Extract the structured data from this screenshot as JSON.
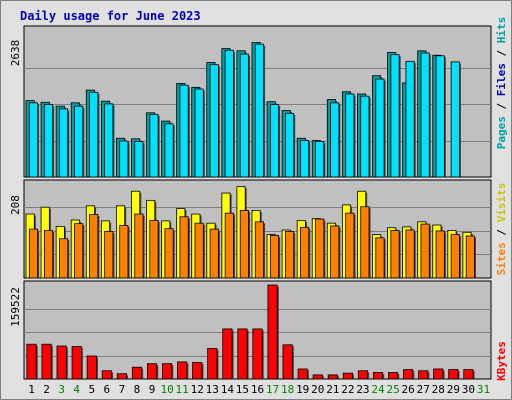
{
  "chart_data": {
    "type": "bar",
    "title": "Daily usage for June 2023",
    "days": [
      "1",
      "2",
      "3",
      "4",
      "5",
      "6",
      "7",
      "8",
      "9",
      "10",
      "11",
      "12",
      "13",
      "14",
      "15",
      "16",
      "17",
      "18",
      "19",
      "20",
      "21",
      "22",
      "23",
      "24",
      "25",
      "26",
      "27",
      "28",
      "29",
      "30",
      "31"
    ],
    "weekend_days": [
      "3",
      "4",
      "10",
      "11",
      "17",
      "18",
      "24",
      "25",
      "31"
    ],
    "panels": [
      {
        "name": "hits-files-pages",
        "max_label": "2638",
        "max": 2638,
        "series": [
          {
            "name": "Pages",
            "color": "#00a0a0",
            "values": [
              1380,
              1350,
              1280,
              1340,
              1570,
              1370,
              700,
              690,
              1160,
              1010,
              1690,
              1620,
              2070,
              2320,
              2280,
              2430,
              1360,
              1200,
              700,
              660,
              1400,
              1540,
              1500,
              1830,
              2250,
              1700,
              2280,
              2200,
              null,
              null,
              null
            ]
          },
          {
            "name": "Files",
            "color": "#0000c0",
            "values": [
              null,
              null,
              null,
              null,
              null,
              null,
              null,
              null,
              null,
              null,
              null,
              null,
              null,
              null,
              null,
              null,
              null,
              null,
              null,
              null,
              null,
              null,
              null,
              null,
              null,
              null,
              null,
              null,
              null,
              null,
              null
            ]
          },
          {
            "name": "Hits",
            "color": "#00e0ff",
            "values": [
              1340,
              1310,
              1230,
              1280,
              1530,
              1320,
              650,
              640,
              1130,
              960,
              1660,
              1590,
              2030,
              2290,
              2220,
              2400,
              1310,
              1150,
              660,
              640,
              1340,
              1500,
              1460,
              1770,
              2210,
              2090,
              2240,
              2190,
              2080,
              null,
              null
            ]
          }
        ]
      },
      {
        "name": "sites-visits",
        "max_label": "208",
        "max": 208,
        "series": [
          {
            "name": "Visits",
            "color": "#ffff00",
            "values": [
              140,
              155,
              113,
              127,
              158,
              125,
              158,
              190,
              170,
              125,
              152,
              140,
              120,
              186,
              200,
              148,
              95,
              105,
              126,
              130,
              120,
              160,
              190,
              95,
              110,
              112,
              123,
              116,
              104,
              100,
              null
            ]
          },
          {
            "name": "Sites",
            "color": "#ff8000",
            "values": [
              107,
              104,
              86,
              119,
              139,
              102,
              115,
              140,
              126,
              108,
              134,
              120,
              107,
              142,
              148,
              123,
              93,
              102,
              111,
              129,
              114,
              142,
              156,
              88,
              104,
              105,
              118,
              103,
              95,
              92,
              null
            ]
          }
        ]
      },
      {
        "name": "kbytes",
        "max_label": "159522",
        "max": 159522,
        "series": [
          {
            "name": "KBytes",
            "color": "#ff0000",
            "values": [
              59000,
              59000,
              56000,
              55000,
              39000,
              14000,
              9000,
              20000,
              26000,
              26000,
              29000,
              28000,
              52000,
              85000,
              85000,
              85000,
              159522,
              58000,
              17000,
              7000,
              7000,
              10000,
              14000,
              11000,
              11000,
              16000,
              14000,
              17000,
              16000,
              16000,
              null
            ]
          }
        ]
      }
    ]
  }
}
